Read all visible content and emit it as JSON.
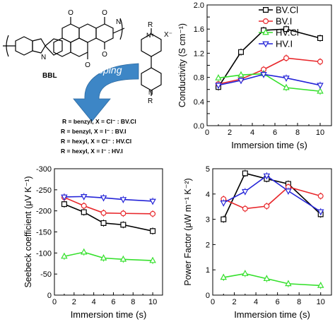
{
  "scheme": {
    "polymer_label": "BBL",
    "arrow_label": "n-doping",
    "n_symbol": "N",
    "r_symbol": "R",
    "x_symbol": "X⁻",
    "n_plus": "N+",
    "o_symbol": "O",
    "legend_lines": [
      "R = benzyl, X = Cl⁻ : BV.Cl",
      "R = benzyl, X = I⁻ : BV.I",
      "R = hexyl, X = Cl⁻ : HV.Cl",
      "R = hexyl, X = I⁻ : HV.I"
    ]
  },
  "colors": {
    "BV.Cl": "#000000",
    "BV.I": "#e8262a",
    "HV.Cl": "#35e02c",
    "HV.I": "#2424d8"
  },
  "chart_data": [
    {
      "type": "line",
      "id": "conductivity",
      "xlabel": "Immersion time (s)",
      "ylabel": "Conductivity (S cm⁻¹)",
      "xlim": [
        0,
        11
      ],
      "ylim": [
        0,
        2.0
      ],
      "xticks": [
        0,
        2,
        4,
        6,
        8,
        10
      ],
      "yticks": [
        0.0,
        0.2,
        0.4,
        0.6,
        0.8,
        1.0,
        1.2,
        1.4,
        1.6,
        1.8,
        2.0
      ],
      "ytick_labels": [
        "0.0",
        "",
        "0.4",
        "",
        "0.8",
        "",
        "1.2",
        "",
        "1.6",
        "",
        "2.0"
      ],
      "legend": "top-right",
      "series": [
        {
          "name": "BV.Cl",
          "marker": "square",
          "x": [
            1,
            3,
            5,
            7,
            10
          ],
          "y": [
            0.64,
            1.22,
            1.58,
            1.6,
            1.45
          ]
        },
        {
          "name": "BV.I",
          "marker": "circle",
          "x": [
            1,
            3,
            5,
            7,
            10
          ],
          "y": [
            0.69,
            0.77,
            0.93,
            1.12,
            1.06
          ]
        },
        {
          "name": "HV.Cl",
          "marker": "triangle-up",
          "x": [
            1,
            3,
            5,
            7,
            10
          ],
          "y": [
            0.79,
            0.84,
            0.86,
            0.63,
            0.57
          ]
        },
        {
          "name": "HV.I",
          "marker": "triangle-down",
          "x": [
            1,
            3,
            5,
            7,
            10
          ],
          "y": [
            0.67,
            0.75,
            0.85,
            0.79,
            0.67
          ]
        }
      ]
    },
    {
      "type": "line",
      "id": "seebeck",
      "xlabel": "Immersion time (s)",
      "ylabel": "Seebeck coefficient (μV K⁻¹)",
      "xlim": [
        0,
        11
      ],
      "ylim": [
        0,
        -300
      ],
      "xticks": [
        0,
        2,
        4,
        6,
        8,
        10
      ],
      "yticks": [
        0,
        -50,
        -100,
        -150,
        -200,
        -250,
        -300
      ],
      "ytick_labels": [
        "0",
        "-50",
        "-100",
        "-150",
        "-200",
        "-250",
        "-300"
      ],
      "series": [
        {
          "name": "BV.Cl",
          "marker": "square",
          "x": [
            1,
            3,
            5,
            7,
            10
          ],
          "y": [
            -216,
            -197,
            -171,
            -167,
            -152
          ]
        },
        {
          "name": "BV.I",
          "marker": "circle",
          "x": [
            1,
            3,
            5,
            7,
            10
          ],
          "y": [
            -232,
            -212,
            -195,
            -194,
            -193
          ]
        },
        {
          "name": "HV.Cl",
          "marker": "triangle-up",
          "x": [
            1,
            3,
            5,
            7,
            10
          ],
          "y": [
            -92,
            -102,
            -88,
            -85,
            -82
          ]
        },
        {
          "name": "HV.I",
          "marker": "triangle-down",
          "x": [
            1,
            3,
            5,
            7,
            10
          ],
          "y": [
            -233,
            -234,
            -231,
            -227,
            -223
          ]
        }
      ]
    },
    {
      "type": "line",
      "id": "power-factor",
      "xlabel": "Immersion time (s)",
      "ylabel": "Power Factor (μW m⁻¹ K⁻²)",
      "xlim": [
        0,
        11
      ],
      "ylim": [
        0,
        5
      ],
      "xticks": [
        0,
        2,
        4,
        6,
        8,
        10
      ],
      "yticks": [
        0,
        1,
        2,
        3,
        4,
        5
      ],
      "ytick_labels": [
        "0",
        "1",
        "2",
        "3",
        "4",
        "5"
      ],
      "series": [
        {
          "name": "BV.Cl",
          "marker": "square",
          "x": [
            1,
            3,
            5,
            7,
            10
          ],
          "y": [
            3.0,
            4.82,
            4.6,
            4.4,
            3.2
          ]
        },
        {
          "name": "BV.I",
          "marker": "circle",
          "x": [
            1,
            3,
            5,
            7,
            10
          ],
          "y": [
            3.8,
            3.42,
            3.52,
            4.28,
            3.92
          ]
        },
        {
          "name": "HV.Cl",
          "marker": "triangle-up",
          "x": [
            1,
            3,
            5,
            7,
            10
          ],
          "y": [
            0.7,
            0.85,
            0.65,
            0.45,
            0.38
          ]
        },
        {
          "name": "HV.I",
          "marker": "triangle-down",
          "x": [
            1,
            3,
            5,
            7,
            10
          ],
          "y": [
            3.65,
            4.1,
            4.72,
            4.12,
            3.3
          ]
        }
      ]
    }
  ]
}
